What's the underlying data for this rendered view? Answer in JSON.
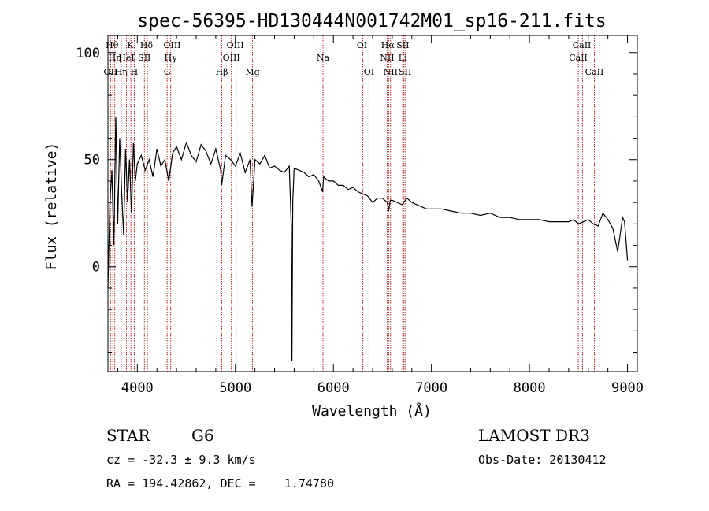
{
  "chart_data": {
    "type": "line",
    "title": "spec-56395-HD130444N001742M01_sp16-211.fits",
    "xlabel": "Wavelength (Å)",
    "ylabel": "Flux (relative)",
    "xlim": [
      3700,
      9100
    ],
    "ylim": [
      -49,
      108
    ],
    "x_ticks": [
      4000,
      5000,
      6000,
      7000,
      8000,
      9000
    ],
    "x_tick_labels": [
      "4000",
      "5000",
      "6000",
      "7000",
      "8000",
      "9000"
    ],
    "y_ticks": [
      0,
      50,
      100
    ],
    "y_tick_labels": [
      "0",
      "50",
      "100"
    ],
    "grid": false,
    "series": [
      {
        "x": [
          3700,
          3720,
          3740,
          3760,
          3780,
          3800,
          3820,
          3840,
          3860,
          3880,
          3900,
          3920,
          3940,
          3960,
          3980,
          4000,
          4040,
          4080,
          4120,
          4160,
          4200,
          4240,
          4280,
          4320,
          4360,
          4400,
          4450,
          4500,
          4550,
          4600,
          4650,
          4700,
          4750,
          4800,
          4850,
          4860,
          4900,
          4950,
          5000,
          5050,
          5100,
          5150,
          5170,
          5180,
          5200,
          5250,
          5300,
          5350,
          5400,
          5450,
          5500,
          5550,
          5570,
          5577,
          5585,
          5600,
          5650,
          5700,
          5750,
          5800,
          5850,
          5890,
          5900,
          5950,
          6000,
          6050,
          6100,
          6150,
          6200,
          6250,
          6300,
          6350,
          6400,
          6450,
          6500,
          6550,
          6563,
          6580,
          6600,
          6650,
          6700,
          6750,
          6800,
          6850,
          6900,
          6950,
          7000,
          7100,
          7200,
          7300,
          7400,
          7500,
          7600,
          7700,
          7800,
          7900,
          8000,
          8100,
          8200,
          8300,
          8400,
          8450,
          8500,
          8550,
          8600,
          8650,
          8700,
          8750,
          8800,
          8850,
          8900,
          8950,
          8970,
          9000
        ],
        "y": [
          -10,
          30,
          45,
          10,
          70,
          20,
          60,
          35,
          15,
          55,
          30,
          50,
          25,
          58,
          40,
          48,
          52,
          45,
          50,
          42,
          55,
          47,
          50,
          40,
          53,
          56,
          50,
          58,
          52,
          49,
          57,
          54,
          48,
          55,
          45,
          38,
          52,
          50,
          47,
          53,
          44,
          50,
          28,
          35,
          50,
          48,
          52,
          46,
          47,
          45,
          44,
          47,
          20,
          -44,
          30,
          46,
          45,
          44,
          42,
          43,
          40,
          35,
          42,
          40,
          40,
          38,
          38,
          36,
          37,
          35,
          34,
          33,
          30,
          32,
          32,
          30,
          26,
          31,
          31,
          30,
          29,
          32,
          30,
          29,
          28,
          27,
          27,
          27,
          26,
          25,
          25,
          24,
          25,
          23,
          23,
          22,
          22,
          22,
          21,
          21,
          21,
          22,
          20,
          21,
          22,
          20,
          19,
          25,
          22,
          18,
          7,
          23,
          21,
          3
        ]
      }
    ],
    "line_markers": [
      {
        "wavelength": 3727,
        "label": "OII",
        "row": 3
      },
      {
        "wavelength": 3750,
        "label": "Hθ",
        "row": 1
      },
      {
        "wavelength": 3770,
        "label": "Hη",
        "row": 2
      },
      {
        "wavelength": 3835,
        "label": "Hη",
        "row": 3
      },
      {
        "wavelength": 3889,
        "label": "HeI",
        "row": 2
      },
      {
        "wavelength": 3934,
        "label": "K",
        "row": 1
      },
      {
        "wavelength": 3969,
        "label": "H",
        "row": 3
      },
      {
        "wavelength": 4072,
        "label": "SII",
        "row": 2
      },
      {
        "wavelength": 4102,
        "label": "Hδ",
        "row": 1
      },
      {
        "wavelength": 4304,
        "label": "G",
        "row": 3
      },
      {
        "wavelength": 4340,
        "label": "Hγ",
        "row": 2
      },
      {
        "wavelength": 4363,
        "label": "OIII",
        "row": 1
      },
      {
        "wavelength": 4861,
        "label": "Hβ",
        "row": 3
      },
      {
        "wavelength": 4959,
        "label": "OIII",
        "row": 2
      },
      {
        "wavelength": 5007,
        "label": "OIII",
        "row": 1
      },
      {
        "wavelength": 5175,
        "label": "Mg",
        "row": 3
      },
      {
        "wavelength": 5894,
        "label": "Na",
        "row": 2
      },
      {
        "wavelength": 6300,
        "label": "OI",
        "row": 1
      },
      {
        "wavelength": 6363,
        "label": "OI",
        "row": 3
      },
      {
        "wavelength": 6548,
        "label": "NII",
        "row": 2
      },
      {
        "wavelength": 6563,
        "label": "Hα",
        "row": 1
      },
      {
        "wavelength": 6583,
        "label": "NII",
        "row": 3
      },
      {
        "wavelength": 6707,
        "label": "Li",
        "row": 2
      },
      {
        "wavelength": 6716,
        "label": "SII",
        "row": 1
      },
      {
        "wavelength": 6731,
        "label": "SII",
        "row": 3
      },
      {
        "wavelength": 8498,
        "label": "CaII",
        "row": 2
      },
      {
        "wavelength": 8542,
        "label": "CaII",
        "row": 1
      },
      {
        "wavelength": 8662,
        "label": "CaII",
        "row": 3
      }
    ]
  },
  "info": {
    "class_text": "STAR",
    "subclass_text": "G6",
    "survey_text": "LAMOST DR3",
    "cz_text": "cz = -32.3 ± 9.3 km/s",
    "obs_date_text": "Obs-Date: 20130412",
    "coords_text": "RA = 194.42862, DEC =    1.74780"
  },
  "colors": {
    "spectrum": "#000000",
    "line_marker": "#b22222",
    "axes": "#000000",
    "background": "#ffffff"
  }
}
